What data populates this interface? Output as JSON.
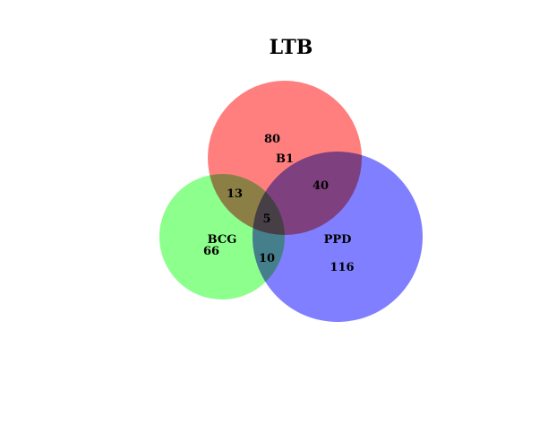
{
  "title": "LTB",
  "sets": [
    {
      "key": "b1",
      "name": "B1",
      "color": "#ff7f7f",
      "only": "80"
    },
    {
      "key": "bcg",
      "name": "BCG",
      "color": "#7fff7f",
      "only": "66"
    },
    {
      "key": "ppd",
      "name": "PPD",
      "color": "#7f7fff",
      "only": "116"
    }
  ],
  "intersections": {
    "b1_bcg": "13",
    "b1_ppd": "40",
    "bcg_ppd": "10",
    "all": "5"
  }
}
